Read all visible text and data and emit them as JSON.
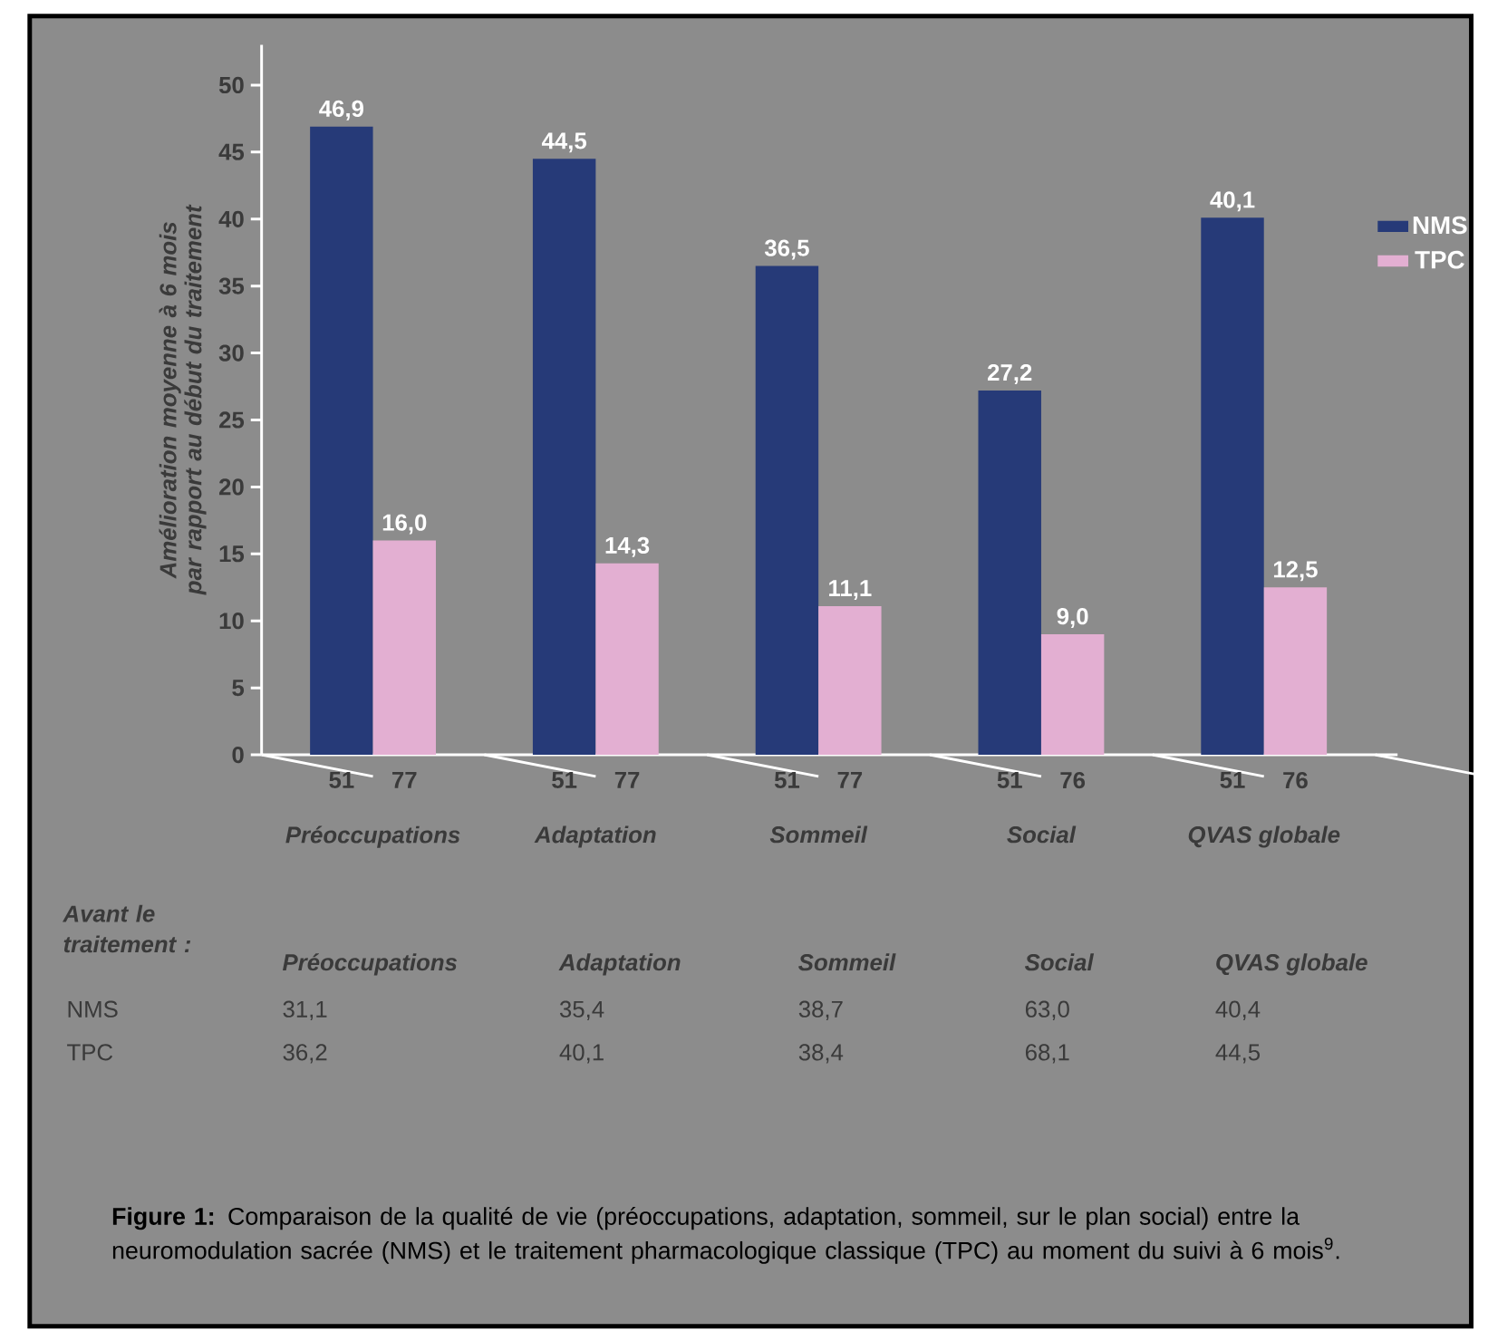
{
  "chart_data": {
    "type": "bar",
    "ylabel": "Amélioration moyenne à 6 mois par rapport au début du traitement",
    "categories": [
      "Préoccupations",
      "Adaptation",
      "Sommeil",
      "Social",
      "QVAS globale"
    ],
    "series": [
      {
        "name": "NMS",
        "color": "#263a78",
        "values": [
          46.9,
          44.5,
          36.5,
          27.2,
          40.1
        ],
        "value_labels": [
          "46,9",
          "44,5",
          "36,5",
          "27,2",
          "40,1"
        ]
      },
      {
        "name": "TPC",
        "color": "#e3afd2",
        "values": [
          16.0,
          14.3,
          11.1,
          9.0,
          12.5
        ],
        "value_labels": [
          "16,0",
          "14,3",
          "11,1",
          "9,0",
          "12,5"
        ]
      }
    ],
    "ylim": [
      0,
      53
    ],
    "yticks": [
      0,
      5,
      10,
      15,
      20,
      25,
      30,
      35,
      40,
      45,
      50
    ],
    "legend": "right",
    "grid": false,
    "annotations": [
      "51",
      "77",
      "51",
      "77",
      "51",
      "77",
      "51",
      "76",
      "51",
      "76",
      "Avant le traitement :",
      "Préoccupations",
      "Adaptation",
      "Sommeil",
      "Social",
      "QVAS globale",
      "NMS",
      "31,1",
      "35,4",
      "38,7",
      "63,0",
      "40,4",
      "TPC",
      "36,2",
      "40,1",
      "38,4",
      "68,1",
      "44,5",
      "**Figure 1:** Comparaison de la qualité de vie (préoccupations, adaptation, sommeil, sur le plan social) entre la neuromodulation sacrée (NMS) et le traitement pharmacologique classique (TPC) au moment du suivi à 6 mois$^{9}$."
    ]
  }
}
